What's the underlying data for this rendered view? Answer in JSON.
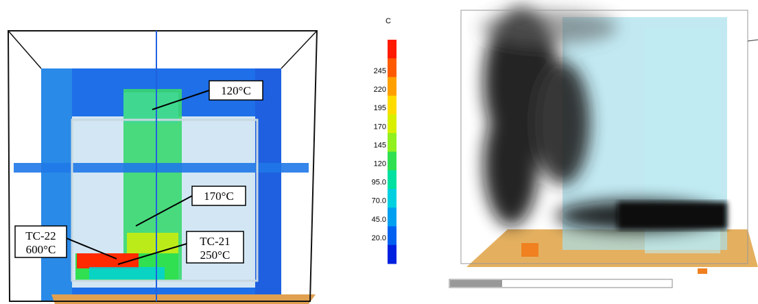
{
  "annotations": [
    {
      "lines": [
        "120°C"
      ]
    },
    {
      "lines": [
        "170°C"
      ]
    },
    {
      "lines": [
        "TC-22",
        "600°C"
      ]
    },
    {
      "lines": [
        "TC-21",
        "250°C"
      ]
    }
  ],
  "colorbar": {
    "unit": "C",
    "ticks": [
      245,
      220,
      195,
      170,
      145,
      120,
      {
        "value": 95,
        "label": "95.0"
      },
      {
        "value": 70,
        "label": "70.0"
      },
      {
        "value": 45,
        "label": "45.0"
      },
      {
        "value": 20,
        "label": "20.0"
      }
    ],
    "colors": [
      "#ff1a00",
      "#ff5a00",
      "#ffa000",
      "#ffdc00",
      "#d8f000",
      "#90f020",
      "#30e050",
      "#00e0a0",
      "#00d0e0",
      "#00a0f0",
      "#0060f0",
      "#0020e0"
    ]
  }
}
